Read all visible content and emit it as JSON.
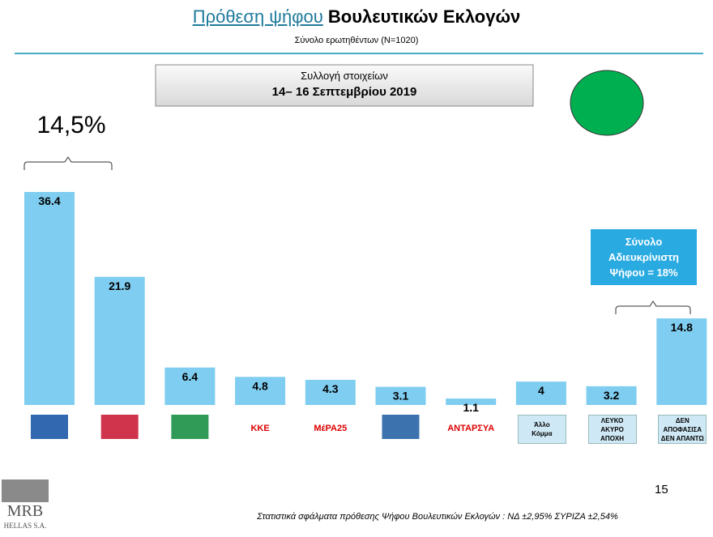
{
  "header": {
    "title_link": "Πρόθεση ψήφου",
    "title": "Βουλευτικών Εκλογών",
    "subtitle": "Σύνολο ερωτηθέντων (N=1020)"
  },
  "period": {
    "label": "Συλλογή στοιχείων",
    "dates": "14– 16 Σεπτεμβρίου 2019"
  },
  "chart_data": {
    "type": "bar",
    "categories": [
      null,
      null,
      null,
      "ΚΚΕ",
      "ΜέΡΑ25",
      null,
      "ΑΝΤΑΡΣΥΑ",
      "Άλλο\nΚόμμα",
      "ΛΕΥΚΟ\nΑΚΥΡΟ\nΑΠΟΧΗ",
      "ΔΕΝ\nΑΠΟΦΑΣΙΣΑ\nΔΕΝ ΑΠΑΝΤΩ"
    ],
    "values": [
      36.4,
      21.9,
      6.4,
      4.8,
      4.3,
      3.1,
      1.1,
      4,
      3.2,
      14.8
    ],
    "color": "#7fcdf0",
    "annotations": [
      "14,5%",
      "Σύνολο Αδιευκρίνιστη Ψήφου = 18%"
    ]
  },
  "footer": {
    "page": "15",
    "note": "Στατιστικά σφάλματα πρόθεσης Ψήφου Βουλευτικών Εκλογών : ΝΔ ±2,95% ΣΥΡΙΖΑ ±2,54%",
    "logo": "MRB",
    "logo_sub": "HELLAS S.A."
  }
}
